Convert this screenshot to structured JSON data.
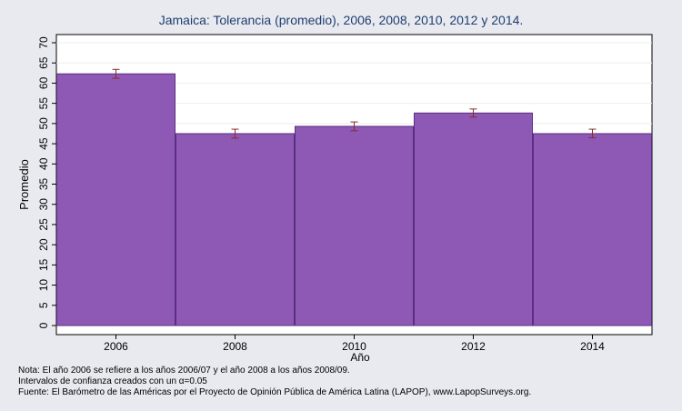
{
  "chart_data": {
    "type": "bar",
    "title": "Jamaica: Tolerancia (promedio), 2006, 2008, 2010, 2012 y 2014.",
    "xlabel": "Año",
    "ylabel": "Promedio",
    "categories": [
      "2006",
      "2008",
      "2010",
      "2012",
      "2014"
    ],
    "values": [
      62.3,
      47.5,
      49.3,
      52.6,
      47.5
    ],
    "error_low": [
      61.2,
      46.4,
      48.2,
      51.6,
      46.5
    ],
    "error_high": [
      63.4,
      48.6,
      50.4,
      53.6,
      48.6
    ],
    "ylim": [
      0,
      70
    ],
    "yticks": [
      0,
      5,
      10,
      15,
      20,
      25,
      30,
      35,
      40,
      45,
      50,
      55,
      60,
      65,
      70
    ],
    "grid": true,
    "colors": {
      "bar": "#8e58b5",
      "bar_edge": "#5a2f80",
      "error_bar": "#8b2a2a",
      "grid": "#eeeeee",
      "background": "#e8eaf0",
      "plot_bg": "#ffffff"
    }
  },
  "notes": {
    "line1": "Nota: El año 2006 se refiere a los años 2006/07 y el año 2008 a los años 2008/09.",
    "line2": "Intervalos de confianza creados con un α=0.05",
    "line3": "Fuente: El Barómetro de las Américas por el Proyecto de Opinión Pública de América Latina (LAPOP), www.LapopSurveys.org."
  }
}
